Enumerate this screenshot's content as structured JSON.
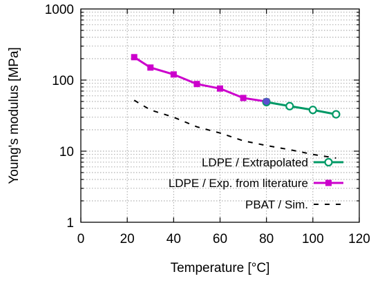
{
  "chart_data": {
    "type": "line",
    "title": "",
    "xlabel": "Temperature [°C]",
    "ylabel": "Young's modulus [MPa]",
    "xlim": [
      0,
      120
    ],
    "ylim": [
      1,
      1000
    ],
    "yscale": "log",
    "grid": true,
    "legend_position": "bottom-right",
    "x_ticks": [
      {
        "value": 0,
        "label": "0"
      },
      {
        "value": 20,
        "label": "20"
      },
      {
        "value": 40,
        "label": "40"
      },
      {
        "value": 60,
        "label": "60"
      },
      {
        "value": 80,
        "label": "80"
      },
      {
        "value": 100,
        "label": "100"
      },
      {
        "value": 120,
        "label": "120"
      }
    ],
    "y_ticks": [
      {
        "value": 1,
        "label": "1"
      },
      {
        "value": 10,
        "label": "10"
      },
      {
        "value": 100,
        "label": "100"
      },
      {
        "value": 1000,
        "label": "1000"
      }
    ],
    "series": [
      {
        "name": "LDPE / Extrapolated",
        "color": "#009966",
        "marker": "open-circle",
        "line": "solid",
        "x": [
          80,
          90,
          100,
          110
        ],
        "y": [
          49,
          43,
          38,
          33
        ]
      },
      {
        "name": "LDPE / Exp. from literature",
        "color": "#cc00cc",
        "marker": "filled-square",
        "line": "solid",
        "x": [
          23,
          30,
          40,
          50,
          60,
          70,
          80
        ],
        "y": [
          210,
          150,
          120,
          88,
          76,
          56,
          50
        ]
      },
      {
        "name": "PBAT / Sim.",
        "color": "#000000",
        "marker": "none",
        "line": "dashed",
        "x": [
          23,
          30,
          40,
          50,
          60,
          70,
          80,
          90,
          100,
          110
        ],
        "y": [
          52,
          38,
          30,
          22,
          18,
          14,
          12,
          10.5,
          9,
          8
        ]
      }
    ]
  }
}
